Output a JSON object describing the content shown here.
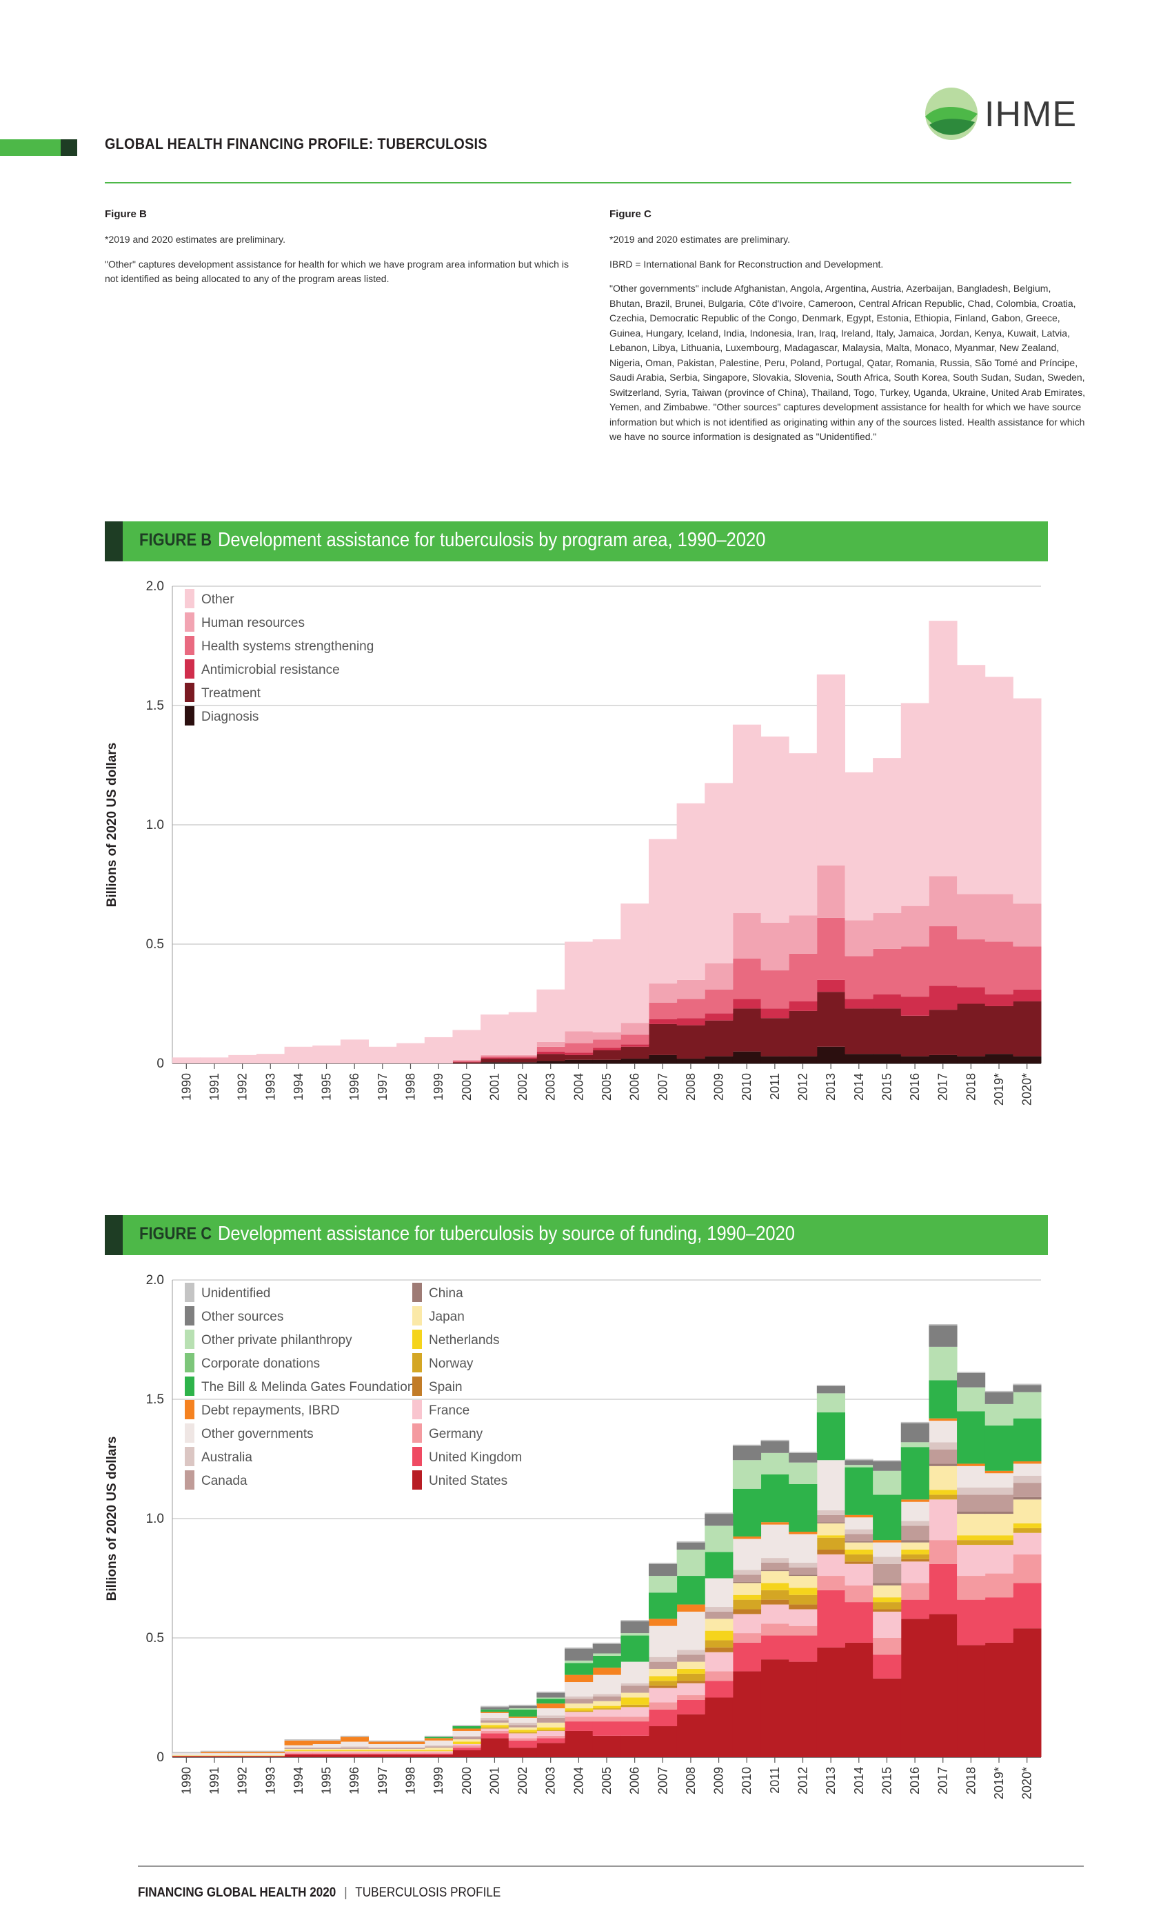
{
  "header": {
    "title": "GLOBAL HEALTH FINANCING PROFILE: TUBERCULOSIS",
    "logo_text": "IHME"
  },
  "notes": {
    "b": {
      "title": "Figure B",
      "p1": "*2019 and 2020 estimates are preliminary.",
      "p2": "\"Other\" captures development assistance for health for which we have program area information but which is not identified as being allocated to any of the program areas listed."
    },
    "c": {
      "title": "Figure C",
      "p1": "*2019 and 2020 estimates are preliminary.",
      "p2": "IBRD = International Bank for Reconstruction and Development.",
      "p3": "\"Other governments\" include Afghanistan, Angola, Argentina, Austria, Azerbaijan, Bangladesh, Belgium, Bhutan, Brazil, Brunei, Bulgaria, Côte d'Ivoire, Cameroon, Central African Republic, Chad, Colombia, Croatia, Czechia, Democratic Republic of the Congo, Denmark, Egypt, Estonia, Ethiopia, Finland, Gabon, Greece, Guinea, Hungary, Iceland, India, Indonesia, Iran, Iraq, Ireland, Italy, Jamaica, Jordan, Kenya, Kuwait, Latvia, Lebanon, Libya, Lithuania, Luxembourg, Madagascar, Malaysia, Malta, Monaco, Myanmar, New Zealand, Nigeria, Oman, Pakistan, Palestine, Peru, Poland, Portugal, Qatar, Romania, Russia, São Tomé and Príncipe, Saudi Arabia, Serbia, Singapore, Slovakia, Slovenia, South Africa, South Korea, South Sudan, Sudan, Sweden, Switzerland, Syria, Taiwan (province of China), Thailand, Togo, Turkey, Uganda, Ukraine, United Arab Emirates, Yemen, and Zimbabwe. \"Other sources\" captures development assistance for health for which we have source information but which is not identified as originating within any of the sources listed. Health assistance for which we have no source information is designated as \"Unidentified.\""
    }
  },
  "figB": {
    "label": "FIGURE B",
    "title": "Development assistance for tuberculosis by program area, 1990–2020"
  },
  "figC": {
    "label": "FIGURE C",
    "title": "Development assistance for tuberculosis by source of funding, 1990–2020"
  },
  "footer": {
    "bold": "FINANCING GLOBAL HEALTH 2020",
    "sep": "|",
    "rest": "TUBERCULOSIS PROFILE"
  },
  "chart_data": [
    {
      "type": "bar",
      "stacked": true,
      "ylabel": "Billions of 2020 US dollars",
      "ylim": [
        0,
        2.0
      ],
      "yticks": [
        "0",
        "0.5",
        "1.0",
        "1.5",
        "2.0"
      ],
      "categories": [
        "1990",
        "1991",
        "1992",
        "1993",
        "1994",
        "1995",
        "1996",
        "1997",
        "1998",
        "1999",
        "2000",
        "2001",
        "2002",
        "2003",
        "2004",
        "2005",
        "2006",
        "2007",
        "2008",
        "2009",
        "2010",
        "2011",
        "2012",
        "2013",
        "2014",
        "2015",
        "2016",
        "2017",
        "2018",
        "2019*",
        "2020*"
      ],
      "legend_position": "top-left",
      "series": [
        {
          "name": "Diagnosis",
          "color": "#2b0f0f",
          "values": [
            0,
            0,
            0,
            0,
            0,
            0,
            0,
            0,
            0,
            0,
            0,
            0.005,
            0.005,
            0.01,
            0.015,
            0.015,
            0.02,
            0.035,
            0.02,
            0.03,
            0.05,
            0.03,
            0.03,
            0.07,
            0.04,
            0.04,
            0.03,
            0.035,
            0.03,
            0.04,
            0.03
          ]
        },
        {
          "name": "Treatment",
          "color": "#7a1a22",
          "values": [
            0,
            0,
            0,
            0,
            0,
            0,
            0,
            0,
            0,
            0,
            0.005,
            0.015,
            0.015,
            0.03,
            0.02,
            0.04,
            0.05,
            0.13,
            0.14,
            0.15,
            0.18,
            0.16,
            0.19,
            0.23,
            0.19,
            0.19,
            0.17,
            0.19,
            0.22,
            0.2,
            0.23
          ]
        },
        {
          "name": "Antimicrobial resistance",
          "color": "#d02e4c",
          "values": [
            0,
            0,
            0,
            0,
            0,
            0,
            0,
            0,
            0,
            0,
            0.002,
            0.005,
            0.005,
            0.01,
            0.01,
            0.01,
            0.01,
            0.02,
            0.03,
            0.03,
            0.04,
            0.04,
            0.04,
            0.05,
            0.04,
            0.06,
            0.08,
            0.1,
            0.07,
            0.05,
            0.05
          ]
        },
        {
          "name": "Health systems strengthening",
          "color": "#e96a80",
          "values": [
            0,
            0,
            0,
            0,
            0,
            0,
            0,
            0,
            0,
            0,
            0.003,
            0.005,
            0.005,
            0.02,
            0.04,
            0.035,
            0.04,
            0.07,
            0.08,
            0.1,
            0.17,
            0.16,
            0.2,
            0.26,
            0.18,
            0.19,
            0.21,
            0.25,
            0.2,
            0.22,
            0.18
          ]
        },
        {
          "name": "Human resources",
          "color": "#f2a4b2",
          "values": [
            0,
            0,
            0,
            0,
            0,
            0,
            0,
            0,
            0,
            0,
            0.005,
            0.005,
            0.005,
            0.02,
            0.05,
            0.03,
            0.05,
            0.08,
            0.08,
            0.11,
            0.19,
            0.2,
            0.16,
            0.22,
            0.15,
            0.15,
            0.17,
            0.21,
            0.19,
            0.2,
            0.18
          ]
        },
        {
          "name": "Other",
          "color": "#f9ccd5",
          "values": [
            0.025,
            0.025,
            0.035,
            0.04,
            0.07,
            0.075,
            0.1,
            0.07,
            0.085,
            0.11,
            0.125,
            0.17,
            0.18,
            0.22,
            0.375,
            0.39,
            0.5,
            0.605,
            0.74,
            0.755,
            0.79,
            0.78,
            0.68,
            0.8,
            0.62,
            0.65,
            0.85,
            1.07,
            0.96,
            0.91,
            0.86
          ]
        }
      ]
    },
    {
      "type": "bar",
      "stacked": true,
      "ylabel": "Billions of 2020 US dollars",
      "ylim": [
        0,
        2.0
      ],
      "yticks": [
        "0",
        "0.5",
        "1.0",
        "1.5",
        "2.0"
      ],
      "categories": [
        "1990",
        "1991",
        "1992",
        "1993",
        "1994",
        "1995",
        "1996",
        "1997",
        "1998",
        "1999",
        "2000",
        "2001",
        "2002",
        "2003",
        "2004",
        "2005",
        "2006",
        "2007",
        "2008",
        "2009",
        "2010",
        "2011",
        "2012",
        "2013",
        "2014",
        "2015",
        "2016",
        "2017",
        "2018",
        "2019*",
        "2020*"
      ],
      "legend_position": "top-left, two columns",
      "series": [
        {
          "name": "United States",
          "color": "#b81d24",
          "values": [
            0.005,
            0.005,
            0.005,
            0.005,
            0.01,
            0.01,
            0.01,
            0.01,
            0.01,
            0.01,
            0.03,
            0.08,
            0.04,
            0.06,
            0.11,
            0.09,
            0.09,
            0.13,
            0.18,
            0.25,
            0.36,
            0.41,
            0.4,
            0.46,
            0.48,
            0.33,
            0.58,
            0.6,
            0.47,
            0.48,
            0.54
          ]
        },
        {
          "name": "United Kingdom",
          "color": "#ef4a62",
          "values": [
            0,
            0,
            0,
            0,
            0.005,
            0.005,
            0.005,
            0.005,
            0.005,
            0.005,
            0.01,
            0.02,
            0.03,
            0.02,
            0.04,
            0.06,
            0.06,
            0.07,
            0.06,
            0.07,
            0.12,
            0.1,
            0.11,
            0.24,
            0.17,
            0.1,
            0.08,
            0.21,
            0.19,
            0.19,
            0.19
          ]
        },
        {
          "name": "Germany",
          "color": "#f49aa0",
          "values": [
            0,
            0,
            0,
            0,
            0.005,
            0.005,
            0.005,
            0.005,
            0.005,
            0.005,
            0.01,
            0.01,
            0.01,
            0.01,
            0.02,
            0.02,
            0.02,
            0.03,
            0.02,
            0.04,
            0.04,
            0.05,
            0.04,
            0.06,
            0.07,
            0.07,
            0.07,
            0.1,
            0.1,
            0.1,
            0.12
          ]
        },
        {
          "name": "France",
          "color": "#f9c5cf",
          "values": [
            0,
            0,
            0,
            0,
            0.005,
            0.005,
            0.005,
            0.005,
            0.005,
            0.005,
            0.005,
            0.01,
            0.02,
            0.02,
            0.02,
            0.03,
            0.04,
            0.06,
            0.05,
            0.08,
            0.08,
            0.08,
            0.07,
            0.09,
            0.09,
            0.11,
            0.09,
            0.17,
            0.13,
            0.12,
            0.09
          ]
        },
        {
          "name": "Spain",
          "color": "#c27c28",
          "values": [
            0,
            0,
            0,
            0,
            0,
            0,
            0,
            0,
            0,
            0,
            0,
            0,
            0,
            0,
            0,
            0,
            0,
            0.01,
            0.01,
            0.02,
            0.02,
            0.02,
            0.02,
            0.02,
            0.01,
            0.01,
            0.01,
            0,
            0,
            0,
            0
          ]
        },
        {
          "name": "Norway",
          "color": "#d4a624",
          "values": [
            0,
            0,
            0,
            0,
            0,
            0,
            0,
            0,
            0,
            0,
            0,
            0.005,
            0.005,
            0.005,
            0.005,
            0.005,
            0.01,
            0.02,
            0.03,
            0.03,
            0.04,
            0.04,
            0.04,
            0.05,
            0.03,
            0.03,
            0.02,
            0.02,
            0.02,
            0.02,
            0.02
          ]
        },
        {
          "name": "Netherlands",
          "color": "#f5d41c",
          "values": [
            0.002,
            0.002,
            0.002,
            0.002,
            0.005,
            0.005,
            0.005,
            0.005,
            0.005,
            0.005,
            0.01,
            0.01,
            0.01,
            0.01,
            0.01,
            0.01,
            0.03,
            0.02,
            0.02,
            0.04,
            0.02,
            0.03,
            0.03,
            0.01,
            0.02,
            0.02,
            0.02,
            0.02,
            0.02,
            0.02,
            0.02
          ]
        },
        {
          "name": "Japan",
          "color": "#fbe9a8",
          "values": [
            0,
            0,
            0,
            0,
            0.005,
            0.005,
            0.005,
            0.005,
            0.005,
            0.01,
            0.01,
            0.01,
            0.01,
            0.02,
            0.02,
            0.02,
            0.02,
            0.03,
            0.03,
            0.05,
            0.05,
            0.05,
            0.05,
            0.05,
            0.03,
            0.05,
            0.03,
            0.1,
            0.09,
            0.09,
            0.1
          ]
        },
        {
          "name": "China",
          "color": "#9e7b75",
          "values": [
            0,
            0,
            0,
            0,
            0,
            0,
            0,
            0,
            0,
            0,
            0,
            0,
            0,
            0,
            0,
            0,
            0,
            0,
            0,
            0,
            0.005,
            0.005,
            0.005,
            0.005,
            0.005,
            0.01,
            0.01,
            0.01,
            0.01,
            0.01,
            0.01
          ]
        },
        {
          "name": "Canada",
          "color": "#c09c98",
          "values": [
            0,
            0,
            0,
            0,
            0.005,
            0.005,
            0.005,
            0.005,
            0.005,
            0.005,
            0.01,
            0.01,
            0.01,
            0.02,
            0.02,
            0.02,
            0.03,
            0.03,
            0.03,
            0.03,
            0.03,
            0.03,
            0.03,
            0.03,
            0.03,
            0.08,
            0.06,
            0.06,
            0.07,
            0.07,
            0.06
          ]
        },
        {
          "name": "Australia",
          "color": "#dbc6c3",
          "values": [
            0,
            0,
            0,
            0,
            0,
            0,
            0.005,
            0,
            0,
            0.005,
            0.005,
            0.01,
            0.01,
            0.01,
            0.01,
            0.01,
            0.01,
            0.02,
            0.02,
            0.02,
            0.02,
            0.02,
            0.02,
            0.02,
            0.02,
            0.03,
            0.02,
            0.03,
            0.03,
            0.03,
            0.03
          ]
        },
        {
          "name": "Other governments",
          "color": "#efe6e4",
          "values": [
            0.01,
            0.01,
            0.01,
            0.01,
            0.01,
            0.015,
            0.02,
            0.015,
            0.015,
            0.02,
            0.02,
            0.02,
            0.02,
            0.03,
            0.06,
            0.08,
            0.09,
            0.13,
            0.16,
            0.12,
            0.13,
            0.14,
            0.12,
            0.21,
            0.05,
            0.06,
            0.08,
            0.09,
            0.09,
            0.06,
            0.05
          ]
        },
        {
          "name": "Debt repayments, IBRD",
          "color": "#f58220",
          "values": [
            0,
            0.005,
            0.005,
            0.005,
            0.02,
            0.015,
            0.02,
            0.01,
            0.01,
            0.01,
            0.01,
            0.005,
            0.005,
            0.02,
            0.03,
            0.03,
            0,
            0.03,
            0.03,
            0,
            0.01,
            0.01,
            0.01,
            0,
            0.01,
            0.01,
            0.01,
            0.01,
            0.01,
            0.01,
            0.01
          ]
        },
        {
          "name": "The Bill & Melinda Gates Foundation",
          "color": "#2eb34a",
          "values": [
            0,
            0,
            0,
            0,
            0,
            0,
            0,
            0,
            0,
            0.005,
            0.01,
            0.01,
            0.03,
            0.02,
            0.05,
            0.05,
            0.11,
            0.11,
            0.12,
            0.11,
            0.2,
            0.2,
            0.2,
            0.2,
            0.2,
            0.19,
            0.22,
            0.16,
            0.22,
            0.19,
            0.18
          ]
        },
        {
          "name": "Corporate donations",
          "color": "#7dc67a",
          "values": [
            0,
            0,
            0,
            0,
            0,
            0,
            0,
            0,
            0,
            0,
            0,
            0,
            0,
            0,
            0,
            0,
            0,
            0,
            0,
            0,
            0,
            0,
            0,
            0,
            0,
            0,
            0,
            0,
            0,
            0,
            0
          ]
        },
        {
          "name": "Other private philanthropy",
          "color": "#b8e0b2",
          "values": [
            0,
            0,
            0,
            0,
            0,
            0,
            0,
            0,
            0,
            0,
            0,
            0,
            0.005,
            0.005,
            0.01,
            0.01,
            0.01,
            0.07,
            0.11,
            0.11,
            0.12,
            0.09,
            0.09,
            0.08,
            0.01,
            0.1,
            0.02,
            0.14,
            0.1,
            0.09,
            0.11
          ]
        },
        {
          "name": "Other sources",
          "color": "#7f7f7f",
          "values": [
            0,
            0,
            0,
            0,
            0,
            0,
            0,
            0,
            0,
            0,
            0,
            0.01,
            0.01,
            0.02,
            0.05,
            0.04,
            0.05,
            0.05,
            0.03,
            0.05,
            0.06,
            0.05,
            0.04,
            0.03,
            0.02,
            0.04,
            0.08,
            0.09,
            0.06,
            0.05,
            0.03
          ]
        },
        {
          "name": "Unidentified",
          "color": "#c4c4c4",
          "values": [
            0.005,
            0.005,
            0.005,
            0.005,
            0.005,
            0.005,
            0.005,
            0.005,
            0.005,
            0.005,
            0.005,
            0.005,
            0.005,
            0.005,
            0.005,
            0.005,
            0.005,
            0.005,
            0.005,
            0.005,
            0.005,
            0.005,
            0.005,
            0.005,
            0.005,
            0.005,
            0.005,
            0.005,
            0.005,
            0.005,
            0.005
          ]
        }
      ]
    }
  ]
}
